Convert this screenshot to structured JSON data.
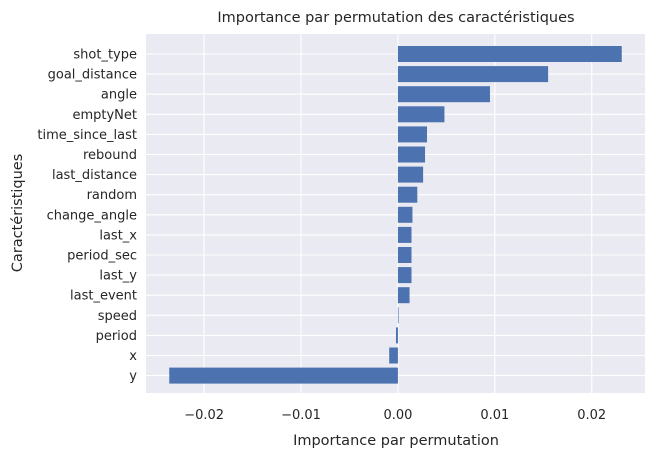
{
  "chart_data": {
    "type": "bar",
    "orientation": "horizontal",
    "title": "Importance par permutation des caractéristiques",
    "xlabel": "Importance par permutation",
    "ylabel": "Caractéristiques",
    "categories": [
      "shot_type",
      "goal_distance",
      "angle",
      "emptyNet",
      "time_since_last",
      "rebound",
      "last_distance",
      "random",
      "change_angle",
      "last_x",
      "period_sec",
      "last_y",
      "last_event",
      "speed",
      "period",
      "x",
      "y"
    ],
    "values": [
      0.0231,
      0.0155,
      0.0095,
      0.0048,
      0.003,
      0.0028,
      0.0026,
      0.002,
      0.0015,
      0.0014,
      0.0014,
      0.0014,
      0.0012,
      0.0,
      -0.0002,
      -0.0009,
      -0.0236
    ],
    "xlim": [
      -0.026,
      0.0255
    ],
    "xticks": [
      -0.02,
      -0.01,
      0.0,
      0.01,
      0.02
    ],
    "xtick_labels": [
      "−0.02",
      "−0.01",
      "0.00",
      "0.01",
      "0.02"
    ],
    "grid": true,
    "colors": {
      "bar": "#4c72b0",
      "background": "#eaeaf2",
      "grid": "#ffffff"
    }
  }
}
